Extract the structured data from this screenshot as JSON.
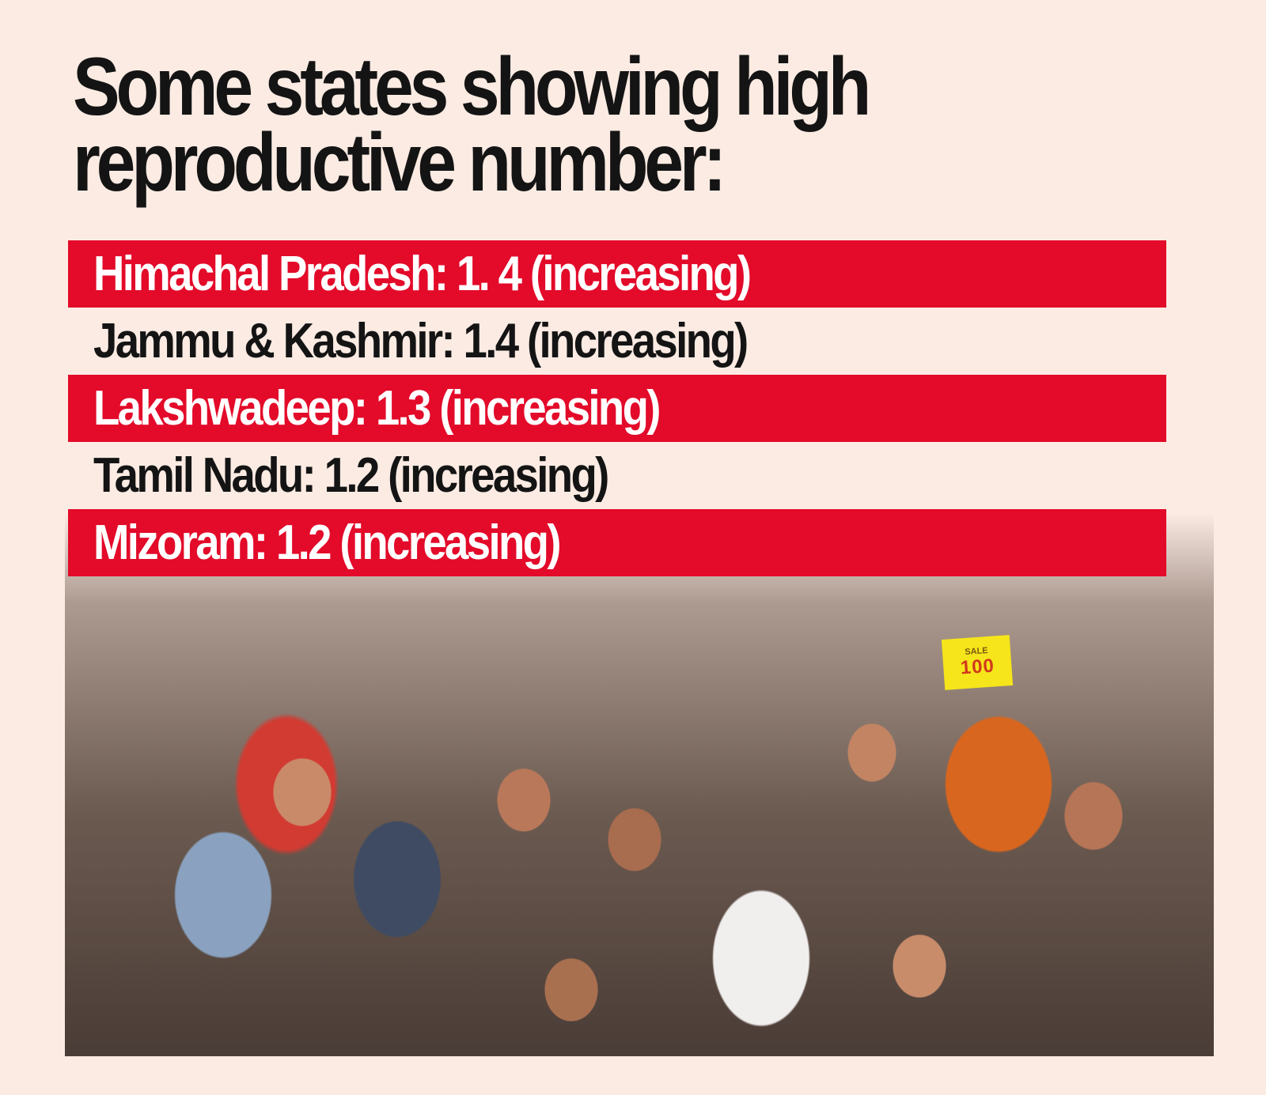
{
  "title": "Some states showing high reproductive number:",
  "title_lines": [
    "Some states showing high",
    "reproductive number:"
  ],
  "rows": [
    {
      "label": "Himachal Pradesh: 1. 4 (increasing)",
      "state": "Himachal Pradesh",
      "value": "1. 4",
      "trend": "increasing",
      "style": "red"
    },
    {
      "label": "Jammu  & Kashmir: 1.4 (increasing)",
      "state": "Jammu & Kashmir",
      "value": "1.4",
      "trend": "increasing",
      "style": "plain"
    },
    {
      "label": "Lakshwadeep: 1.3 (increasing)",
      "state": "Lakshwadeep",
      "value": "1.3",
      "trend": "increasing",
      "style": "red"
    },
    {
      "label": "Tamil Nadu: 1.2 (increasing)",
      "state": "Tamil Nadu",
      "value": "1.2",
      "trend": "increasing",
      "style": "plain"
    },
    {
      "label": "Mizoram: 1.2 (increasing)",
      "state": "Mizoram",
      "value": "1.2",
      "trend": "increasing",
      "style": "red"
    }
  ],
  "photo": {
    "description": "Crowd of people wearing face masks in a market",
    "sign_small": "SALE",
    "sign_price": "100"
  },
  "colors": {
    "background": "#fbebe3",
    "highlight_bar": "#e30a2a",
    "text_dark": "#141414",
    "text_light": "#ffffff"
  }
}
